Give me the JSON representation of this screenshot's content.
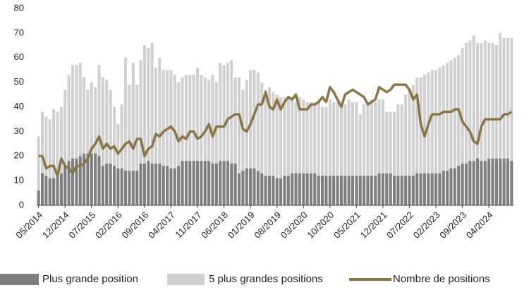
{
  "chart_data": {
    "type": "bar-line",
    "categories": [
      "05/2014",
      null,
      null,
      null,
      null,
      null,
      null,
      "12/2014",
      null,
      null,
      null,
      null,
      null,
      null,
      "07/2015",
      null,
      null,
      null,
      null,
      null,
      null,
      "02/2016",
      null,
      null,
      null,
      null,
      null,
      null,
      "09/2016",
      null,
      null,
      null,
      null,
      null,
      null,
      "04/2017",
      null,
      null,
      null,
      null,
      null,
      null,
      "11/2017",
      null,
      null,
      null,
      null,
      null,
      null,
      "06/2018",
      null,
      null,
      null,
      null,
      null,
      null,
      "01/2019",
      null,
      null,
      null,
      null,
      null,
      null,
      "08/2019",
      null,
      null,
      null,
      null,
      null,
      null,
      "03/2020",
      null,
      null,
      null,
      null,
      null,
      null,
      "10/2020",
      null,
      null,
      null,
      null,
      null,
      null,
      "05/2021",
      null,
      null,
      null,
      null,
      null,
      null,
      "12/2021",
      null,
      null,
      null,
      null,
      null,
      null,
      "07/2022",
      null,
      null,
      null,
      null,
      null,
      null,
      "02/2023",
      null,
      null,
      null,
      null,
      null,
      null,
      "09/2023",
      null,
      null,
      null,
      null,
      null,
      null,
      "04/2024",
      null,
      null,
      null,
      null,
      null,
      null
    ],
    "series": [
      {
        "name": "5 plus grandes positions",
        "color": "#d0d0d0",
        "kind": "bar",
        "values": [
          28,
          38,
          36,
          35,
          39,
          38,
          40,
          47,
          53,
          57,
          57,
          58,
          52,
          47,
          50,
          48,
          57,
          52,
          51,
          47,
          40,
          33,
          41,
          60,
          49,
          58,
          49,
          59,
          65,
          64,
          66,
          56,
          60,
          55,
          55,
          55,
          53,
          50,
          52,
          53,
          53,
          53,
          56,
          53,
          52,
          51,
          53,
          50,
          58,
          57,
          58,
          59,
          52,
          52,
          47,
          51,
          55,
          55,
          54,
          50,
          47,
          48,
          46,
          45,
          44,
          44,
          44,
          44,
          42,
          44,
          43,
          42,
          42,
          41,
          42,
          40,
          40,
          43,
          42,
          42,
          40,
          41,
          43,
          42,
          42,
          37,
          41,
          42,
          43,
          42,
          43,
          43,
          38,
          38,
          38,
          41,
          41,
          45,
          47,
          49,
          52,
          52,
          53,
          54,
          55,
          55,
          56,
          57,
          58,
          59,
          60,
          61,
          64,
          66,
          67,
          69,
          66,
          66,
          67,
          66,
          66,
          65,
          70,
          68,
          68,
          68
        ]
      },
      {
        "name": "Plus grande position",
        "color": "#7f7f7f",
        "kind": "bar",
        "values": [
          6,
          13,
          12,
          11,
          11,
          12,
          13,
          16,
          18,
          19,
          19,
          20,
          21,
          21,
          21,
          21,
          20,
          16,
          17,
          17,
          16,
          15,
          15,
          14,
          14,
          14,
          14,
          17,
          17,
          18,
          17,
          17,
          17,
          16,
          16,
          15,
          15,
          16,
          18,
          18,
          18,
          18,
          18,
          18,
          18,
          18,
          17,
          17,
          18,
          18,
          18,
          17,
          17,
          13,
          14,
          15,
          15,
          15,
          14,
          13,
          12,
          12,
          12,
          11,
          11,
          12,
          12,
          13,
          13,
          13,
          13,
          13,
          13,
          13,
          12,
          12,
          12,
          12,
          12,
          12,
          12,
          12,
          12,
          12,
          12,
          12,
          12,
          12,
          12,
          12,
          13,
          13,
          13,
          13,
          12,
          12,
          12,
          12,
          12,
          12,
          13,
          13,
          13,
          13,
          13,
          13,
          13,
          14,
          14,
          15,
          15,
          16,
          17,
          17,
          18,
          18,
          19,
          18,
          18,
          19,
          19,
          19,
          19,
          19,
          19,
          18
        ]
      },
      {
        "name": "Nombre de positions",
        "color": "#8b7544",
        "kind": "line",
        "values": [
          20,
          20,
          15,
          16,
          16,
          12,
          19,
          16,
          15,
          13,
          16,
          16,
          17,
          19,
          23,
          25,
          28,
          23,
          25,
          23,
          24,
          21,
          23,
          25,
          26,
          23,
          27,
          27,
          20,
          23,
          24,
          29,
          28,
          30,
          31,
          32,
          30,
          26,
          28,
          27,
          30,
          30,
          27,
          28,
          30,
          33,
          28,
          32,
          32,
          32,
          35,
          36,
          37,
          37,
          31,
          30,
          33,
          37,
          41,
          41,
          46,
          40,
          39,
          43,
          39,
          42,
          44,
          43,
          45,
          39,
          39,
          39,
          41,
          41,
          42,
          44,
          42,
          48,
          46,
          43,
          40,
          45,
          46,
          47,
          46,
          45,
          44,
          41,
          42,
          43,
          48,
          47,
          46,
          47,
          49,
          49,
          49,
          49,
          47,
          43,
          45,
          33,
          28,
          33,
          37,
          37,
          37,
          38,
          38,
          38,
          39,
          39,
          34,
          32,
          30,
          26,
          25,
          32,
          35,
          35,
          35,
          35,
          35,
          37,
          37,
          38
        ]
      }
    ],
    "ylim": [
      0,
      80
    ],
    "yticks": [
      0,
      10,
      20,
      30,
      40,
      50,
      60,
      70,
      80
    ],
    "grid": false
  }
}
